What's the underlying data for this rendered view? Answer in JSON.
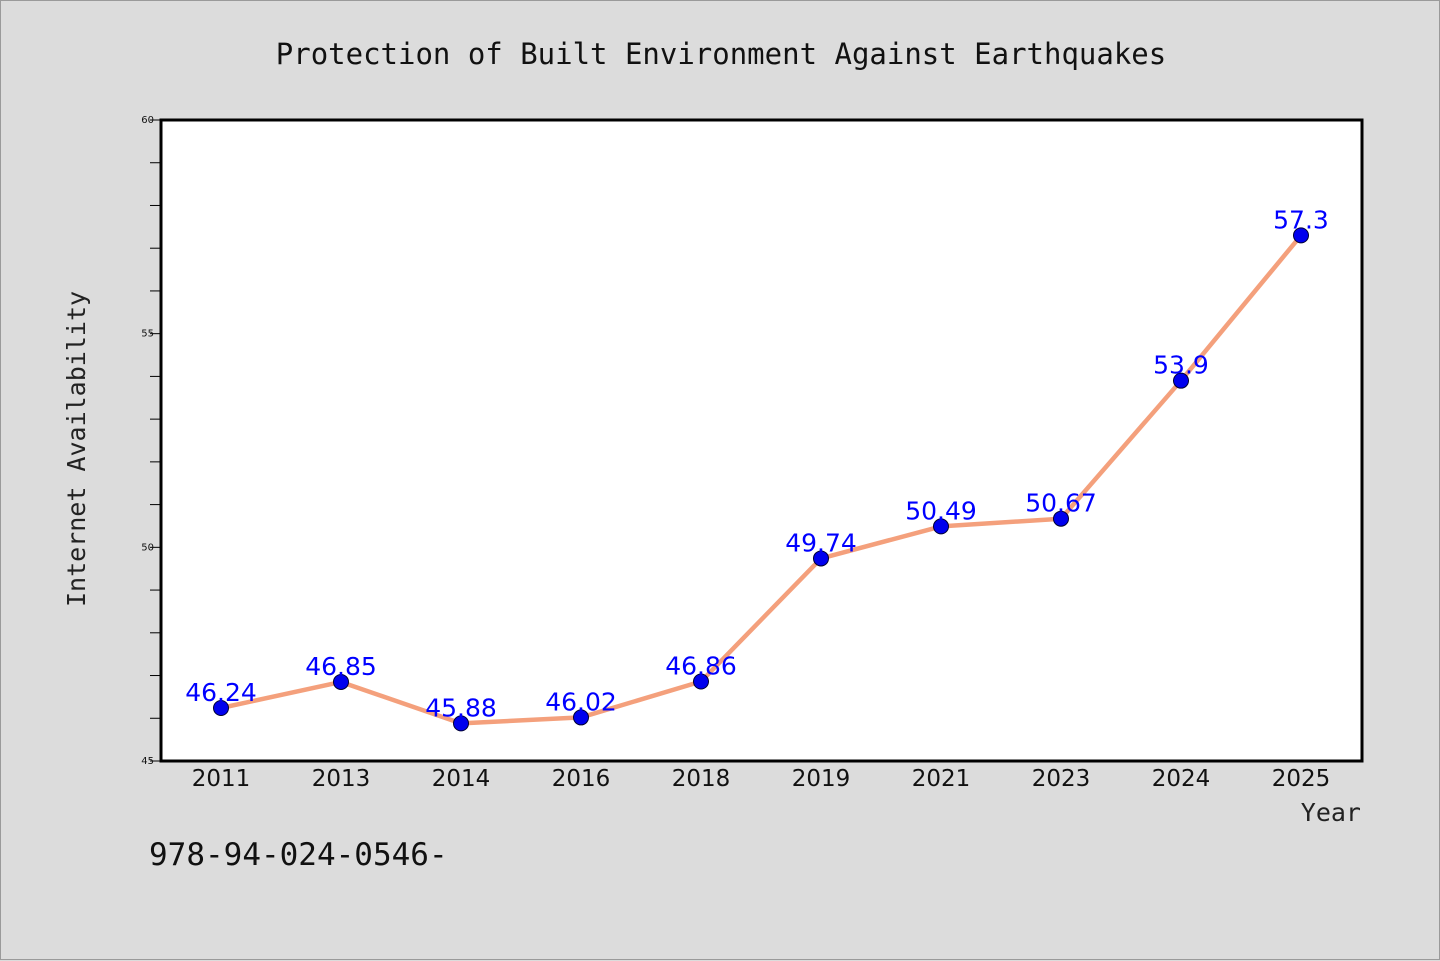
{
  "chart_data": {
    "type": "line",
    "title": "Protection of Built Environment Against Earthquakes",
    "xlabel": "Year",
    "ylabel": "Internet Availability",
    "categories": [
      "2011",
      "2013",
      "2014",
      "2016",
      "2018",
      "2019",
      "2021",
      "2023",
      "2024",
      "2025"
    ],
    "series": [
      {
        "values": [
          46.24,
          46.85,
          45.88,
          46.02,
          46.86,
          49.74,
          50.49,
          50.67,
          53.9,
          57.3
        ],
        "labels": [
          "46.24",
          "46.85",
          "45.88",
          "46.02",
          "46.86",
          "49.74",
          "50.49",
          "50.67",
          "53.9",
          "57.3"
        ],
        "line_color": "#f4a07c",
        "marker_color": "#0000ee"
      }
    ],
    "ylim": [
      45,
      60
    ],
    "y_ticks": [
      "45",
      "50",
      "55",
      "60"
    ],
    "y_minor_step": 1,
    "grid": false,
    "label_color": "#0000ff"
  },
  "footer": {
    "code": "978-94-024-0546-"
  }
}
